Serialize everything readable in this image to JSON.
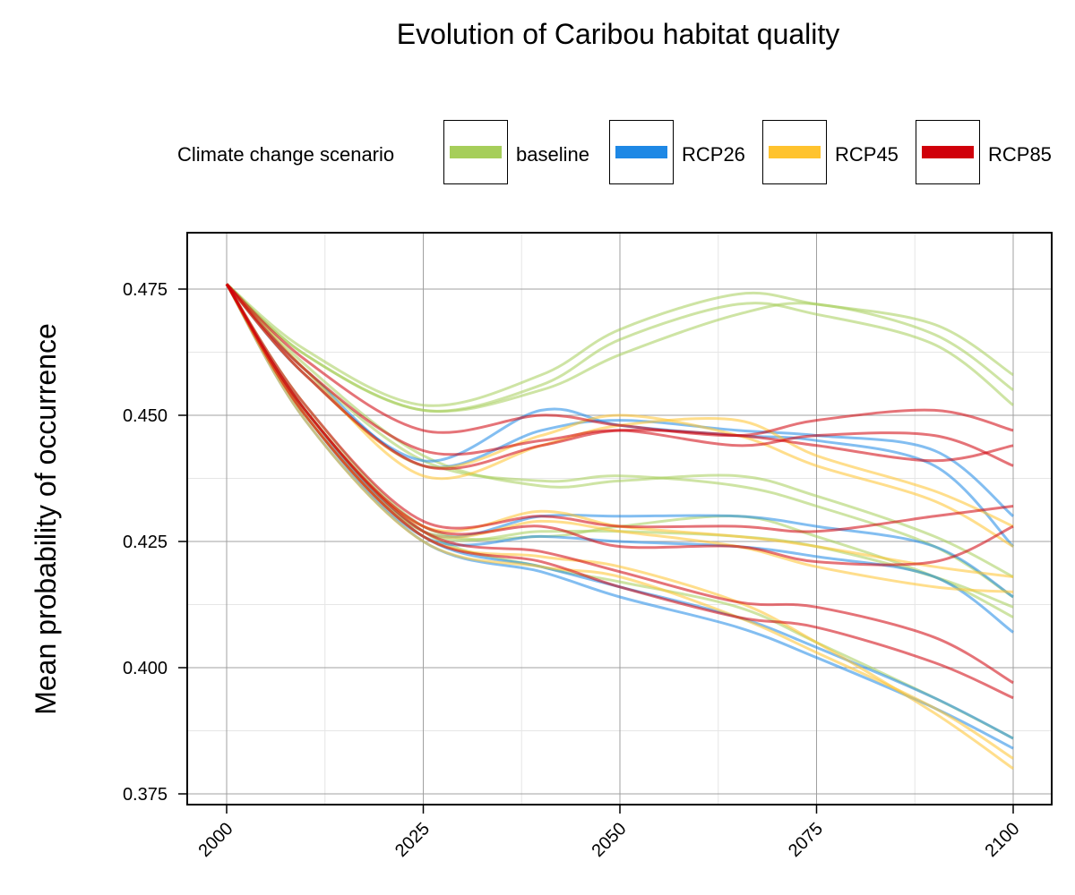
{
  "chart_data": {
    "type": "line",
    "title": "Evolution of Caribou habitat quality",
    "ylabel": "Mean probability of occurrence",
    "xlabel": "",
    "xlim": [
      1998,
      2105
    ],
    "ylim": [
      0.372,
      0.486
    ],
    "x_ticks": [
      2000,
      2025,
      2050,
      2075,
      2100
    ],
    "x_tick_labels": [
      "2000",
      "2025",
      "2050",
      "2075",
      "2100"
    ],
    "y_ticks": [
      0.375,
      0.4,
      0.425,
      0.45,
      0.475
    ],
    "y_tick_labels": [
      "0.375",
      "0.400",
      "0.425",
      "0.450",
      "0.475"
    ],
    "grid": true,
    "legend": {
      "title": "Climate change scenario",
      "placement": "top",
      "entries": [
        {
          "name": "baseline",
          "color": "#A6CE5A"
        },
        {
          "name": "RCP26",
          "color": "#1E88E5"
        },
        {
          "name": "RCP45",
          "color": "#FFC32E"
        },
        {
          "name": "RCP85",
          "color": "#D0000A"
        }
      ]
    },
    "x": [
      2000,
      2010,
      2025,
      2040,
      2050,
      2065,
      2075,
      2090,
      2100
    ],
    "series": [
      {
        "name": "baseline",
        "values": [
          0.476,
          0.463,
          0.452,
          0.458,
          0.467,
          0.474,
          0.472,
          0.468,
          0.458
        ]
      },
      {
        "name": "baseline",
        "values": [
          0.476,
          0.462,
          0.451,
          0.456,
          0.465,
          0.472,
          0.47,
          0.464,
          0.452
        ]
      },
      {
        "name": "baseline",
        "values": [
          0.476,
          0.462,
          0.451,
          0.455,
          0.462,
          0.47,
          0.472,
          0.466,
          0.455
        ]
      },
      {
        "name": "baseline",
        "values": [
          0.476,
          0.46,
          0.442,
          0.436,
          0.437,
          0.438,
          0.434,
          0.426,
          0.418
        ]
      },
      {
        "name": "baseline",
        "values": [
          0.476,
          0.459,
          0.441,
          0.437,
          0.438,
          0.436,
          0.432,
          0.424,
          0.414
        ]
      },
      {
        "name": "baseline",
        "values": [
          0.476,
          0.452,
          0.428,
          0.426,
          0.428,
          0.43,
          0.426,
          0.418,
          0.41
        ]
      },
      {
        "name": "baseline",
        "values": [
          0.476,
          0.451,
          0.427,
          0.427,
          0.427,
          0.426,
          0.424,
          0.418,
          0.412
        ]
      },
      {
        "name": "baseline",
        "values": [
          0.476,
          0.451,
          0.427,
          0.42,
          0.417,
          0.412,
          0.405,
          0.394,
          0.386
        ]
      },
      {
        "name": "RCP26",
        "values": [
          0.476,
          0.459,
          0.44,
          0.447,
          0.449,
          0.447,
          0.446,
          0.443,
          0.43
        ]
      },
      {
        "name": "RCP26",
        "values": [
          0.476,
          0.458,
          0.441,
          0.451,
          0.448,
          0.446,
          0.445,
          0.44,
          0.424
        ]
      },
      {
        "name": "RCP26",
        "values": [
          0.476,
          0.451,
          0.427,
          0.43,
          0.43,
          0.43,
          0.428,
          0.424,
          0.414
        ]
      },
      {
        "name": "RCP26",
        "values": [
          0.476,
          0.45,
          0.426,
          0.426,
          0.425,
          0.424,
          0.422,
          0.418,
          0.407
        ]
      },
      {
        "name": "RCP26",
        "values": [
          0.476,
          0.45,
          0.426,
          0.42,
          0.416,
          0.41,
          0.404,
          0.394,
          0.386
        ]
      },
      {
        "name": "RCP26",
        "values": [
          0.476,
          0.449,
          0.425,
          0.419,
          0.414,
          0.408,
          0.402,
          0.392,
          0.384
        ]
      },
      {
        "name": "RCP45",
        "values": [
          0.476,
          0.459,
          0.438,
          0.444,
          0.448,
          0.449,
          0.442,
          0.435,
          0.428
        ]
      },
      {
        "name": "RCP45",
        "values": [
          0.476,
          0.458,
          0.44,
          0.446,
          0.45,
          0.446,
          0.44,
          0.433,
          0.424
        ]
      },
      {
        "name": "RCP45",
        "values": [
          0.476,
          0.451,
          0.428,
          0.431,
          0.428,
          0.426,
          0.424,
          0.42,
          0.418
        ]
      },
      {
        "name": "RCP45",
        "values": [
          0.476,
          0.45,
          0.427,
          0.429,
          0.427,
          0.424,
          0.42,
          0.416,
          0.415
        ]
      },
      {
        "name": "RCP45",
        "values": [
          0.476,
          0.45,
          0.426,
          0.422,
          0.42,
          0.413,
          0.405,
          0.391,
          0.38
        ]
      },
      {
        "name": "RCP45",
        "values": [
          0.476,
          0.449,
          0.425,
          0.42,
          0.418,
          0.41,
          0.403,
          0.392,
          0.382
        ]
      },
      {
        "name": "RCP85",
        "values": [
          0.476,
          0.461,
          0.447,
          0.45,
          0.448,
          0.446,
          0.449,
          0.451,
          0.447
        ]
      },
      {
        "name": "RCP85",
        "values": [
          0.476,
          0.459,
          0.443,
          0.445,
          0.447,
          0.444,
          0.446,
          0.446,
          0.44
        ]
      },
      {
        "name": "RCP85",
        "values": [
          0.476,
          0.458,
          0.44,
          0.444,
          0.447,
          0.446,
          0.444,
          0.441,
          0.444
        ]
      },
      {
        "name": "RCP85",
        "values": [
          0.476,
          0.452,
          0.429,
          0.43,
          0.428,
          0.428,
          0.427,
          0.43,
          0.432
        ]
      },
      {
        "name": "RCP85",
        "values": [
          0.476,
          0.451,
          0.428,
          0.428,
          0.424,
          0.424,
          0.421,
          0.421,
          0.428
        ]
      },
      {
        "name": "RCP85",
        "values": [
          0.476,
          0.451,
          0.427,
          0.423,
          0.419,
          0.413,
          0.412,
          0.406,
          0.397
        ]
      },
      {
        "name": "RCP85",
        "values": [
          0.476,
          0.45,
          0.426,
          0.421,
          0.416,
          0.41,
          0.408,
          0.401,
          0.394
        ]
      }
    ]
  }
}
